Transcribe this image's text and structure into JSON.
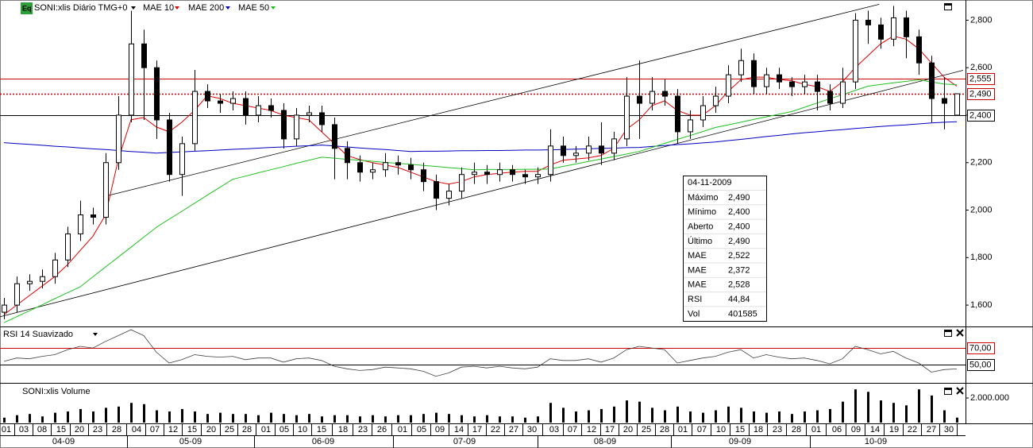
{
  "icon": "Eq",
  "chart_data": [
    {
      "type": "candlestick",
      "title": "SONI:xlis Diário TMG+0",
      "open": [
        1570,
        1600,
        1690,
        1700,
        1720,
        1790,
        1900,
        1980,
        1970,
        2200,
        2400,
        2700,
        2600,
        2380,
        2150,
        2280,
        2500,
        2460,
        2450,
        2470,
        2400,
        2440,
        2420,
        2300,
        2400,
        2410,
        2360,
        2260,
        2200,
        2160,
        2170,
        2200,
        2190,
        2170,
        2120,
        2050,
        2080,
        2150,
        2160,
        2150,
        2170,
        2150,
        2140,
        2150,
        2270,
        2230,
        2240,
        2270,
        2240,
        2300,
        2480,
        2450,
        2500,
        2480,
        2330,
        2380,
        2440,
        2480,
        2570,
        2630,
        2520,
        2570,
        2540,
        2520,
        2540,
        2500,
        2450,
        2540,
        2800,
        2780,
        2720,
        2810,
        2730,
        2620,
        2470,
        2400
      ],
      "high": [
        1630,
        1720,
        1730,
        1750,
        1820,
        1930,
        2040,
        2010,
        2240,
        2480,
        2840,
        2760,
        2630,
        2410,
        2310,
        2590,
        2530,
        2490,
        2500,
        2500,
        2480,
        2470,
        2450,
        2430,
        2440,
        2440,
        2390,
        2290,
        2230,
        2200,
        2240,
        2230,
        2220,
        2200,
        2150,
        2110,
        2180,
        2200,
        2190,
        2200,
        2190,
        2170,
        2180,
        2340,
        2310,
        2270,
        2310,
        2370,
        2330,
        2560,
        2630,
        2560,
        2550,
        2510,
        2420,
        2480,
        2520,
        2610,
        2680,
        2660,
        2600,
        2600,
        2560,
        2570,
        2570,
        2530,
        2600,
        2830,
        2840,
        2810,
        2860,
        2840,
        2760,
        2650,
        2560,
        2490
      ],
      "low": [
        1540,
        1570,
        1660,
        1670,
        1690,
        1760,
        1870,
        1940,
        1940,
        2170,
        2370,
        2380,
        2300,
        2120,
        2060,
        2250,
        2430,
        2410,
        2420,
        2360,
        2370,
        2390,
        2260,
        2270,
        2370,
        2330,
        2130,
        2130,
        2120,
        2130,
        2140,
        2150,
        2130,
        2080,
        2000,
        2020,
        2050,
        2110,
        2110,
        2120,
        2120,
        2110,
        2110,
        2120,
        2200,
        2200,
        2210,
        2190,
        2210,
        2270,
        2300,
        2420,
        2440,
        2280,
        2300,
        2350,
        2410,
        2450,
        2540,
        2490,
        2490,
        2510,
        2480,
        2490,
        2420,
        2420,
        2430,
        2510,
        2700,
        2680,
        2690,
        2640,
        2570,
        2370,
        2340,
        2400
      ],
      "close": [
        1600,
        1690,
        1700,
        1720,
        1790,
        1900,
        1980,
        1970,
        2200,
        2400,
        2700,
        2600,
        2380,
        2150,
        2280,
        2500,
        2460,
        2450,
        2470,
        2400,
        2440,
        2420,
        2300,
        2400,
        2410,
        2360,
        2260,
        2200,
        2160,
        2170,
        2200,
        2190,
        2170,
        2120,
        2050,
        2080,
        2150,
        2160,
        2150,
        2170,
        2150,
        2140,
        2150,
        2270,
        2230,
        2240,
        2270,
        2240,
        2300,
        2480,
        2450,
        2500,
        2480,
        2330,
        2380,
        2440,
        2480,
        2570,
        2630,
        2520,
        2570,
        2540,
        2520,
        2540,
        2500,
        2450,
        2540,
        2800,
        2780,
        2720,
        2810,
        2730,
        2620,
        2470,
        2450,
        2490
      ],
      "series": [
        {
          "name": "MAE 10",
          "color": "#e00000",
          "values": [
            1560,
            1600,
            1640,
            1680,
            1720,
            1770,
            1830,
            1890,
            1980,
            2213,
            2381,
            2390,
            2350,
            2330,
            2370,
            2420,
            2482,
            2470,
            2450,
            2440,
            2430,
            2420,
            2400,
            2390,
            2380,
            2330,
            2280,
            2230,
            2213,
            2200,
            2190,
            2180,
            2160,
            2140,
            2120,
            2110,
            2120,
            2140,
            2150,
            2155,
            2160,
            2163,
            2163,
            2190,
            2210,
            2215,
            2220,
            2230,
            2260,
            2340,
            2380,
            2440,
            2460,
            2420,
            2400,
            2400,
            2440,
            2500,
            2549,
            2560,
            2560,
            2550,
            2545,
            2530,
            2520,
            2500,
            2540,
            2600,
            2650,
            2700,
            2733,
            2720,
            2680,
            2620,
            2560,
            2522
          ]
        },
        {
          "name": "MAE 200",
          "color": "#0000c0",
          "values": [
            2284,
            2280,
            2277,
            2273,
            2269,
            2266,
            2262,
            2258,
            2255,
            2251,
            2247,
            2244,
            2240,
            2243,
            2245,
            2248,
            2250,
            2253,
            2256,
            2258,
            2261,
            2264,
            2266,
            2269,
            2271,
            2274,
            2270,
            2266,
            2262,
            2258,
            2255,
            2251,
            2247,
            2248,
            2248,
            2249,
            2250,
            2250,
            2251,
            2251,
            2252,
            2253,
            2253,
            2254,
            2255,
            2257,
            2258,
            2260,
            2261,
            2263,
            2264,
            2268,
            2272,
            2276,
            2279,
            2283,
            2287,
            2293,
            2298,
            2304,
            2310,
            2315,
            2321,
            2326,
            2330,
            2335,
            2339,
            2344,
            2348,
            2352,
            2356,
            2359,
            2363,
            2367,
            2370,
            2372
          ]
        },
        {
          "name": "MAE 50",
          "color": "#20c020",
          "values": [
            1526,
            1551,
            1576,
            1601,
            1627,
            1652,
            1677,
            1719,
            1761,
            1802,
            1844,
            1886,
            1928,
            1962,
            1995,
            2029,
            2063,
            2096,
            2130,
            2143,
            2157,
            2170,
            2183,
            2197,
            2210,
            2223,
            2219,
            2214,
            2210,
            2206,
            2201,
            2197,
            2193,
            2188,
            2184,
            2179,
            2175,
            2170,
            2171,
            2171,
            2171,
            2172,
            2172,
            2173,
            2184,
            2194,
            2205,
            2215,
            2226,
            2236,
            2247,
            2264,
            2281,
            2298,
            2314,
            2331,
            2348,
            2359,
            2370,
            2382,
            2393,
            2404,
            2415,
            2433,
            2451,
            2469,
            2486,
            2504,
            2522,
            2529,
            2536,
            2542,
            2549,
            2540,
            2531,
            2528
          ]
        }
      ],
      "ylim": [
        1510,
        2885
      ],
      "yticks": [
        {
          "value": 1600,
          "label": "1,600"
        },
        {
          "value": 1800,
          "label": "1,800"
        },
        {
          "value": 2000,
          "label": "2,000"
        },
        {
          "value": 2200,
          "label": "2,200"
        },
        {
          "value": 2400,
          "label": "2,400"
        },
        {
          "value": 2600,
          "label": "2,600"
        },
        {
          "value": 2800,
          "label": "2,800"
        }
      ],
      "levels": [
        {
          "value": 2555,
          "label": "2,555",
          "color": "#d00000",
          "style": "solid"
        },
        {
          "value": 2490,
          "label": "2,490",
          "color": "#c00000",
          "style": "dotted"
        },
        {
          "value": 2400,
          "label": "2,400",
          "color": "#000000",
          "style": "solid"
        }
      ],
      "trendlines": [
        [
          7.8,
          2056,
          68.9,
          2867
        ],
        [
          -0.3,
          1551,
          75.5,
          2589
        ]
      ]
    },
    {
      "type": "line",
      "title": "RSI 14 Suavizado",
      "color": "#404040",
      "values": [
        54,
        58,
        57,
        60,
        62,
        68,
        72,
        70,
        78,
        85,
        92,
        85,
        65,
        52,
        56,
        62,
        60,
        59,
        60,
        56,
        58,
        58,
        53,
        57,
        58,
        55,
        48,
        45,
        43,
        44,
        47,
        46,
        45,
        42,
        36,
        40,
        47,
        48,
        46,
        48,
        46,
        45,
        47,
        57,
        55,
        55,
        57,
        53,
        58,
        68,
        72,
        70,
        68,
        52,
        55,
        58,
        60,
        65,
        68,
        58,
        62,
        59,
        57,
        58,
        55,
        51,
        57,
        72,
        68,
        63,
        66,
        58,
        52,
        41,
        44,
        44.84
      ],
      "ylim": [
        29,
        95
      ],
      "levels": [
        {
          "value": 70,
          "label": "70,00",
          "color": "#d00000",
          "style": "solid"
        },
        {
          "value": 50,
          "label": "50,00",
          "color": "#000000",
          "style": "solid"
        }
      ]
    },
    {
      "type": "bar",
      "title": "SONI:xlis Volume",
      "color": "#000000",
      "values": [
        400000,
        600000,
        700000,
        500000,
        800000,
        900000,
        1100000,
        900000,
        1200000,
        1300000,
        1600000,
        1500000,
        1000000,
        900000,
        1100000,
        900000,
        700000,
        800000,
        700000,
        700000,
        600000,
        800000,
        700000,
        600000,
        700000,
        500000,
        600000,
        600000,
        500000,
        600000,
        500000,
        600000,
        600000,
        700000,
        800000,
        700000,
        600000,
        500000,
        600000,
        500000,
        500000,
        400000,
        500000,
        1600000,
        1200000,
        900000,
        1000000,
        1100000,
        1300000,
        1800000,
        1700000,
        1200000,
        1000000,
        1300000,
        900000,
        800000,
        1000000,
        1300000,
        1200000,
        900000,
        800000,
        900000,
        700000,
        900000,
        1000000,
        1100000,
        1700000,
        2700000,
        2500000,
        1800000,
        1600000,
        1400000,
        2700000,
        2200000,
        1000000,
        401585
      ],
      "ylim": [
        0,
        2970000
      ],
      "yticks": [
        {
          "value": 2000000,
          "label": "2.000.000"
        }
      ]
    }
  ],
  "x_axis": {
    "days": [
      "01",
      "03",
      "08",
      "15",
      "20",
      "23",
      "28",
      "04",
      "07",
      "12",
      "15",
      "20",
      "25",
      "28",
      "01",
      "05",
      "10",
      "15",
      "18",
      "23",
      "26",
      "01",
      "05",
      "09",
      "14",
      "17",
      "22",
      "27",
      "30",
      "03",
      "07",
      "12",
      "17",
      "20",
      "25",
      "28",
      "01",
      "07",
      "10",
      "15",
      "18",
      "23",
      "28",
      "01",
      "06",
      "09",
      "14",
      "19",
      "22",
      "27",
      "30"
    ],
    "months": [
      "04-09",
      "05-09",
      "06-09",
      "07-09",
      "08-09",
      "09-09",
      "10-09"
    ]
  },
  "info": {
    "date": "04-11-2009",
    "rows": [
      {
        "label": "Máximo",
        "value": "2,490"
      },
      {
        "label": "Mínimo",
        "value": "2,400"
      },
      {
        "label": "Aberto",
        "value": "2,400"
      },
      {
        "label": "Último",
        "value": "2,490"
      },
      {
        "label": "MAE",
        "value": "2,522",
        "color": "#e00000"
      },
      {
        "label": "MAE",
        "value": "2,372",
        "color": "#0000c0"
      },
      {
        "label": "MAE",
        "value": "2,528",
        "color": "#20c020"
      },
      {
        "label": "RSI",
        "value": "44,84"
      },
      {
        "label": "Vol",
        "value": "401585"
      }
    ]
  }
}
